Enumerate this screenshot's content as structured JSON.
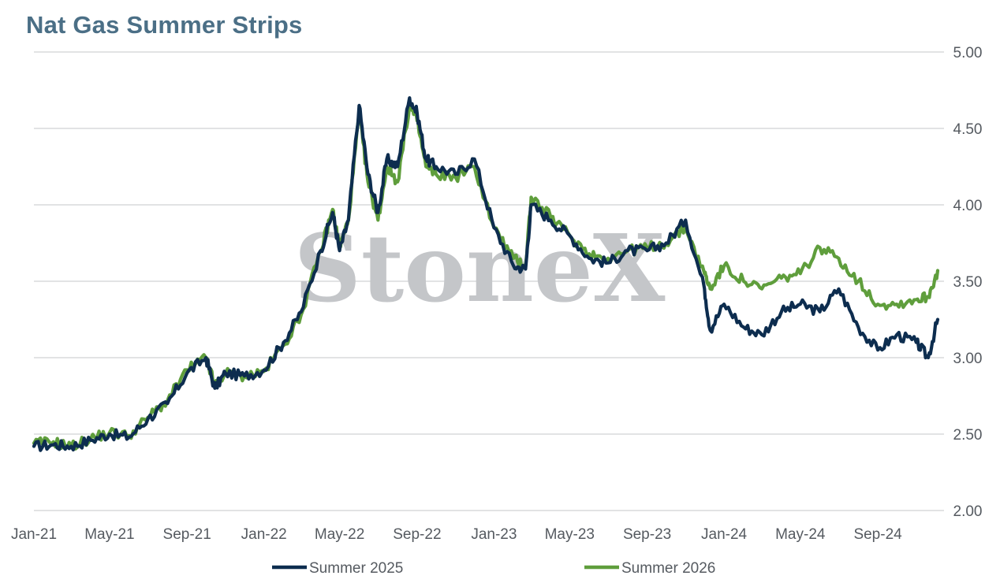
{
  "title": "Nat Gas Summer Strips",
  "watermark": "StoneX",
  "colors": {
    "summer2025": "#0d2d4f",
    "summer2026": "#5f9e3c",
    "grid": "#d0d2d4",
    "title": "#4b6f86"
  },
  "chart_data": {
    "type": "line",
    "title": "Nat Gas Summer Strips",
    "xlabel": "",
    "ylabel": "",
    "ylim": [
      2.0,
      5.0
    ],
    "y_ticks": [
      "5.00",
      "4.50",
      "4.00",
      "3.50",
      "3.00",
      "2.50",
      "2.00"
    ],
    "y_axis_side": "right",
    "grid": "horizontal",
    "legend_position": "bottom",
    "x_ticks": [
      "Jan-21",
      "May-21",
      "Sep-21",
      "Jan-22",
      "May-22",
      "Sep-22",
      "Jan-23",
      "May-23",
      "Sep-23",
      "Jan-24",
      "May-24",
      "Sep-24"
    ],
    "x": [
      "2021-01-01",
      "2021-02-01",
      "2021-03-01",
      "2021-04-01",
      "2021-05-01",
      "2021-06-01",
      "2021-07-01",
      "2021-08-01",
      "2021-09-01",
      "2021-10-01",
      "2021-10-15",
      "2021-11-01",
      "2021-12-01",
      "2022-01-01",
      "2022-02-01",
      "2022-03-01",
      "2022-04-01",
      "2022-04-20",
      "2022-05-01",
      "2022-05-15",
      "2022-06-01",
      "2022-06-15",
      "2022-07-01",
      "2022-07-15",
      "2022-08-01",
      "2022-08-20",
      "2022-09-01",
      "2022-09-15",
      "2022-10-01",
      "2022-11-01",
      "2022-12-01",
      "2023-01-01",
      "2023-02-01",
      "2023-02-20",
      "2023-03-01",
      "2023-04-01",
      "2023-05-01",
      "2023-06-01",
      "2023-07-01",
      "2023-08-01",
      "2023-09-01",
      "2023-10-01",
      "2023-11-01",
      "2023-12-01",
      "2023-12-10",
      "2024-01-01",
      "2024-02-01",
      "2024-03-01",
      "2024-04-01",
      "2024-05-01",
      "2024-06-01",
      "2024-07-01",
      "2024-08-01",
      "2024-09-01",
      "2024-10-01",
      "2024-11-01",
      "2024-11-20",
      "2024-12-05"
    ],
    "series": [
      {
        "name": "Summer 2025",
        "values": [
          2.42,
          2.43,
          2.42,
          2.46,
          2.5,
          2.48,
          2.6,
          2.7,
          2.9,
          3.0,
          2.8,
          2.9,
          2.88,
          2.92,
          3.1,
          3.3,
          3.7,
          3.95,
          3.7,
          3.9,
          4.65,
          4.2,
          3.95,
          4.3,
          4.25,
          4.7,
          4.6,
          4.3,
          4.25,
          4.2,
          4.3,
          3.85,
          3.6,
          3.58,
          4.0,
          3.9,
          3.8,
          3.65,
          3.62,
          3.7,
          3.7,
          3.75,
          3.9,
          3.45,
          3.18,
          3.35,
          3.2,
          3.15,
          3.3,
          3.35,
          3.3,
          3.45,
          3.2,
          3.05,
          3.15,
          3.1,
          3.0,
          3.25
        ]
      },
      {
        "name": "Summer 2026",
        "values": [
          2.44,
          2.45,
          2.42,
          2.47,
          2.51,
          2.49,
          2.61,
          2.72,
          2.92,
          3.0,
          2.82,
          2.9,
          2.88,
          2.91,
          3.08,
          3.28,
          3.7,
          3.97,
          3.72,
          3.9,
          4.6,
          4.15,
          3.9,
          4.25,
          4.15,
          4.65,
          4.55,
          4.25,
          4.2,
          4.18,
          4.25,
          3.85,
          3.65,
          3.6,
          4.05,
          3.92,
          3.8,
          3.68,
          3.65,
          3.7,
          3.72,
          3.75,
          3.85,
          3.55,
          3.45,
          3.6,
          3.5,
          3.45,
          3.52,
          3.55,
          3.72,
          3.65,
          3.5,
          3.35,
          3.35,
          3.38,
          3.4,
          3.57
        ]
      }
    ]
  }
}
